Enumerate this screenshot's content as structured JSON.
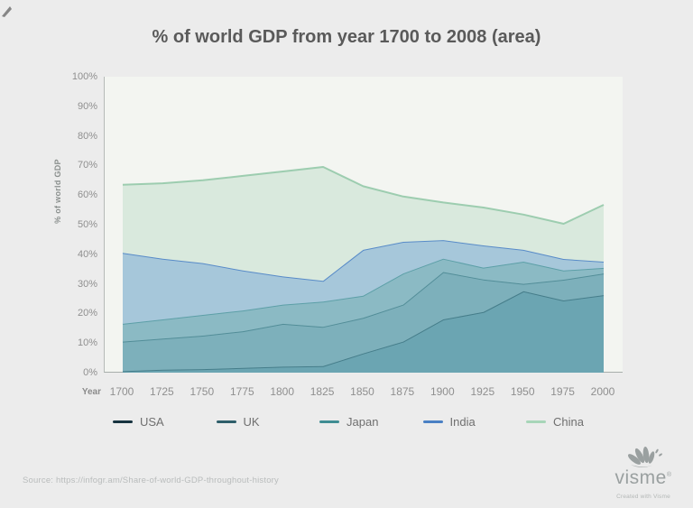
{
  "page": {
    "title": "% of world GDP from year 1700 to 2008 (area)",
    "source_text": "Source: https://infogr.am/Share-of-world-GDP-throughout-history",
    "brand": {
      "wordmark": "visme",
      "registered": "®",
      "tagline": "Created with Visme"
    }
  },
  "chart_data": {
    "type": "area",
    "stacked": true,
    "title": "% of world GDP from year 1700 to 2008 (area)",
    "xlabel": "Year",
    "ylabel": "% of world GDP",
    "ylim": [
      0,
      100
    ],
    "grid": false,
    "legend_position": "bottom",
    "x_ticks": [
      "1700",
      "1725",
      "1750",
      "1775",
      "1800",
      "1825",
      "1850",
      "1875",
      "1900",
      "1925",
      "1950",
      "1975",
      "2000"
    ],
    "y_ticks": [
      "0%",
      "10%",
      "20%",
      "30%",
      "40%",
      "50%",
      "60%",
      "70%",
      "80%",
      "90%",
      "100%"
    ],
    "categories": [
      1700,
      1725,
      1750,
      1775,
      1800,
      1825,
      1850,
      1875,
      1900,
      1925,
      1950,
      1975,
      2000
    ],
    "series": [
      {
        "name": "USA",
        "legend_color": "#17333f",
        "stroke": "#3e7582",
        "fill": "#6ba5b2",
        "values": [
          0.5,
          1.0,
          1.2,
          1.6,
          2.0,
          2.2,
          6.5,
          10.5,
          18.0,
          20.5,
          27.5,
          24.4,
          26.2
        ]
      },
      {
        "name": "UK",
        "legend_color": "#2e5e6a",
        "stroke": "#4a8792",
        "fill": "#7db0bb",
        "values": [
          10.0,
          10.5,
          11.3,
          12.4,
          14.5,
          13.3,
          12.0,
          12.5,
          16.0,
          11.0,
          2.5,
          7.0,
          7.3
        ]
      },
      {
        "name": "Japan",
        "legend_color": "#3f8d93",
        "stroke": "#539aa2",
        "fill": "#8bbac4",
        "values": [
          6.0,
          6.5,
          7.0,
          7.0,
          6.5,
          8.5,
          7.5,
          10.5,
          4.5,
          4.0,
          7.5,
          3.1,
          1.9
        ]
      },
      {
        "name": "India",
        "legend_color": "#4a80c4",
        "stroke": "#4a80c4",
        "fill": "#a6c7da",
        "values": [
          24.0,
          20.5,
          17.5,
          13.5,
          9.5,
          7.0,
          15.5,
          10.7,
          6.3,
          7.5,
          4.0,
          3.9,
          2.1
        ]
      },
      {
        "name": "China",
        "legend_color": "#a7d5b8",
        "stroke": "#8fc7a6",
        "fill": "#d9e9dd",
        "values": [
          23.0,
          25.5,
          28.0,
          32.0,
          35.5,
          38.5,
          21.5,
          15.3,
          12.7,
          12.8,
          11.9,
          11.9,
          19.2
        ]
      }
    ]
  },
  "layout_colors": {
    "page_bg": "#ececec",
    "plot_bg": "#f3f5f1",
    "axis": "#a7aeab",
    "title_text": "#5a5a5a"
  }
}
